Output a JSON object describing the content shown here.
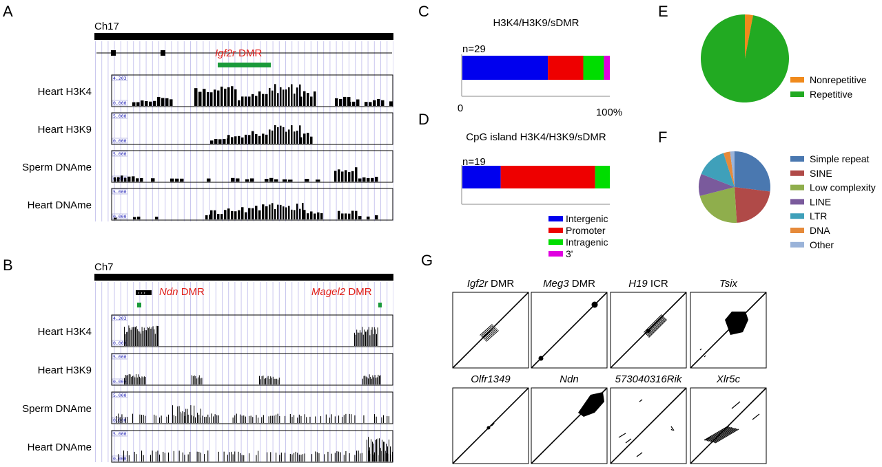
{
  "panel_letters": {
    "a": "A",
    "b": "B",
    "c": "C",
    "d": "D",
    "e": "E",
    "f": "F",
    "g": "G"
  },
  "panel_a": {
    "chrom": "Ch17",
    "dmr_gene": "Igf2r",
    "dmr_suffix": " DMR",
    "tracks": [
      {
        "name": "Heart H3K4",
        "max": "4.203",
        "min": "0.000"
      },
      {
        "name": "Heart H3K9",
        "max": "5.000",
        "min": "0.000"
      },
      {
        "name": "Sperm DNAme",
        "max": "5.000",
        "min": "0.000"
      },
      {
        "name": "Heart DNAme",
        "max": "5.000",
        "min": "0.000"
      }
    ]
  },
  "panel_b": {
    "chrom": "Ch7",
    "dmr1_gene": "Ndn",
    "dmr1_suffix": " DMR",
    "dmr2_gene": "Magel2",
    "dmr2_suffix": " DMR",
    "tracks": [
      {
        "name": "Heart H3K4",
        "max": "4.203",
        "min": "0.000"
      },
      {
        "name": "Heart H3K9",
        "max": "5.000",
        "min": "0.000"
      },
      {
        "name": "Sperm DNAme",
        "max": "5.000",
        "min": "0.000"
      },
      {
        "name": "Heart DNAme",
        "max": "5.000",
        "min": "0.000"
      }
    ]
  },
  "panel_c": {
    "title": "H3K4/H3K9/sDMR",
    "n_label": "n=29",
    "axis_start": "0",
    "axis_end": "100%"
  },
  "panel_d": {
    "title": "CpG island H3K4/H3K9/sDMR",
    "n_label": "n=19"
  },
  "stack_legend": [
    {
      "label": "Intergenic",
      "color": "#0000ee"
    },
    {
      "label": "Promoter",
      "color": "#ee0000"
    },
    {
      "label": "Intragenic",
      "color": "#00dd00"
    },
    {
      "label": "3'",
      "color": "#e000e0"
    }
  ],
  "pie_e_legend": [
    {
      "label": "Nonrepetitive",
      "color": "#f08a1c"
    },
    {
      "label": "Repetitive",
      "color": "#22aa22"
    }
  ],
  "pie_f_legend": [
    {
      "label": "Simple repeat",
      "color": "#4a78b0"
    },
    {
      "label": "SINE",
      "color": "#b04a48"
    },
    {
      "label": "Low complexity",
      "color": "#8fae4c"
    },
    {
      "label": "LINE",
      "color": "#7a5a9c"
    },
    {
      "label": "LTR",
      "color": "#3fa0ba"
    },
    {
      "label": "DNA",
      "color": "#e68a3a"
    },
    {
      "label": "Other",
      "color": "#9ab3d9"
    }
  ],
  "panel_g": {
    "row1": [
      {
        "gene": "Igf2r",
        "suffix": " DMR"
      },
      {
        "gene": "Meg3",
        "suffix": " DMR"
      },
      {
        "gene": "H19",
        "suffix": " ICR"
      },
      {
        "gene": "Tsix",
        "suffix": ""
      }
    ],
    "row2": [
      {
        "gene": "Olfr1349",
        "suffix": ""
      },
      {
        "gene": "Ndn",
        "suffix": ""
      },
      {
        "gene": "573040316Rik",
        "suffix": ""
      },
      {
        "gene": "Xlr5c",
        "suffix": ""
      }
    ]
  },
  "chart_data": [
    {
      "type": "bar",
      "orientation": "horizontal",
      "stacked": true,
      "title": "H3K4/H3K9/sDMR",
      "annotation": "n=29",
      "categories": [
        "n=29"
      ],
      "series": [
        {
          "name": "Intergenic",
          "values": [
            58
          ]
        },
        {
          "name": "Promoter",
          "values": [
            24
          ]
        },
        {
          "name": "Intragenic",
          "values": [
            14
          ]
        },
        {
          "name": "3'",
          "values": [
            4
          ]
        }
      ],
      "xlim": [
        0,
        100
      ],
      "xticks": [
        "0",
        "100%"
      ]
    },
    {
      "type": "bar",
      "orientation": "horizontal",
      "stacked": true,
      "title": "CpG island H3K4/H3K9/sDMR",
      "annotation": "n=19",
      "categories": [
        "n=19"
      ],
      "series": [
        {
          "name": "Intergenic",
          "values": [
            26
          ]
        },
        {
          "name": "Promoter",
          "values": [
            64
          ]
        },
        {
          "name": "Intragenic",
          "values": [
            10
          ]
        },
        {
          "name": "3'",
          "values": [
            0
          ]
        }
      ],
      "xlim": [
        0,
        100
      ]
    },
    {
      "type": "pie",
      "labels": [
        "Nonrepetitive",
        "Repetitive"
      ],
      "values": [
        3,
        97
      ],
      "legend": "right"
    },
    {
      "type": "pie",
      "labels": [
        "Simple repeat",
        "SINE",
        "Low complexity",
        "LINE",
        "LTR",
        "DNA",
        "Other"
      ],
      "values": [
        27,
        22,
        22,
        10,
        14,
        3,
        2
      ],
      "legend": "right"
    }
  ]
}
